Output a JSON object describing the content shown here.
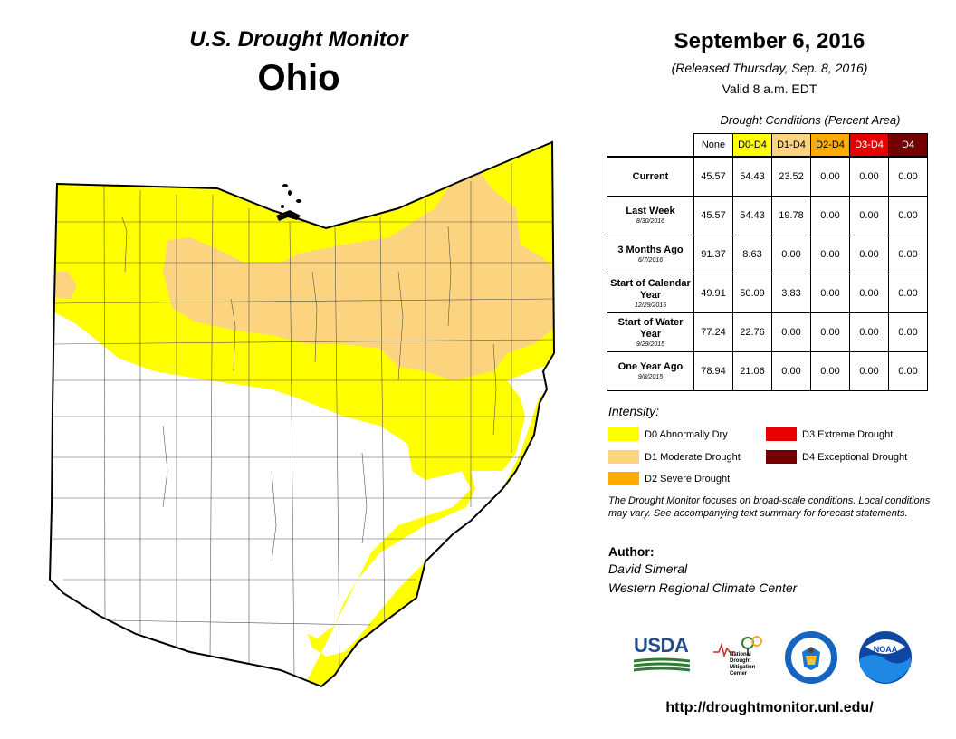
{
  "header": {
    "title": "U.S. Drought Monitor",
    "state": "Ohio",
    "date": "September 6, 2016",
    "released": "(Released Thursday, Sep. 8, 2016)",
    "valid": "Valid 8 a.m. EDT"
  },
  "table": {
    "caption": "Drought Conditions (Percent Area)",
    "columns": [
      {
        "label": "None",
        "color": "#ffffff",
        "text_color": "#000000"
      },
      {
        "label": "D0-D4",
        "color": "#ffff00",
        "text_color": "#000000"
      },
      {
        "label": "D1-D4",
        "color": "#fcd37f",
        "text_color": "#000000"
      },
      {
        "label": "D2-D4",
        "color": "#ffaa00",
        "text_color": "#000000"
      },
      {
        "label": "D3-D4",
        "color": "#e60000",
        "text_color": "#ffffff"
      },
      {
        "label": "D4",
        "color": "#730000",
        "text_color": "#ffffff"
      }
    ],
    "rows": [
      {
        "label": "Current",
        "sub": "",
        "values": [
          "45.57",
          "54.43",
          "23.52",
          "0.00",
          "0.00",
          "0.00"
        ]
      },
      {
        "label": "Last Week",
        "sub": "8/30/2016",
        "values": [
          "45.57",
          "54.43",
          "19.78",
          "0.00",
          "0.00",
          "0.00"
        ]
      },
      {
        "label": "3 Months Ago",
        "sub": "6/7/2016",
        "values": [
          "91.37",
          "8.63",
          "0.00",
          "0.00",
          "0.00",
          "0.00"
        ]
      },
      {
        "label": "Start of Calendar Year",
        "sub": "12/29/2015",
        "values": [
          "49.91",
          "50.09",
          "3.83",
          "0.00",
          "0.00",
          "0.00"
        ]
      },
      {
        "label": "Start of Water Year",
        "sub": "9/29/2015",
        "values": [
          "77.24",
          "22.76",
          "0.00",
          "0.00",
          "0.00",
          "0.00"
        ]
      },
      {
        "label": "One Year Ago",
        "sub": "9/8/2015",
        "values": [
          "78.94",
          "21.06",
          "0.00",
          "0.00",
          "0.00",
          "0.00"
        ]
      }
    ]
  },
  "legend": {
    "title": "Intensity:",
    "items": [
      {
        "label": "D0 Abnormally Dry",
        "color": "#ffff00"
      },
      {
        "label": "D1 Moderate Drought",
        "color": "#fcd37f"
      },
      {
        "label": "D2 Severe Drought",
        "color": "#ffaa00"
      },
      {
        "label": "D3 Extreme Drought",
        "color": "#e60000"
      },
      {
        "label": "D4 Exceptional Drought",
        "color": "#730000"
      }
    ]
  },
  "note": "The Drought Monitor focuses on broad-scale conditions. Local conditions may vary. See accompanying text summary for forecast statements.",
  "author": {
    "heading": "Author:",
    "name": "David Simeral",
    "org": "Western Regional Climate Center"
  },
  "logos": {
    "usda": "USDA",
    "ndmc": [
      "National",
      "Drought",
      "Mitigation",
      "Center"
    ],
    "noaa": "NOAA"
  },
  "url": "http://droughtmonitor.unl.edu/"
}
